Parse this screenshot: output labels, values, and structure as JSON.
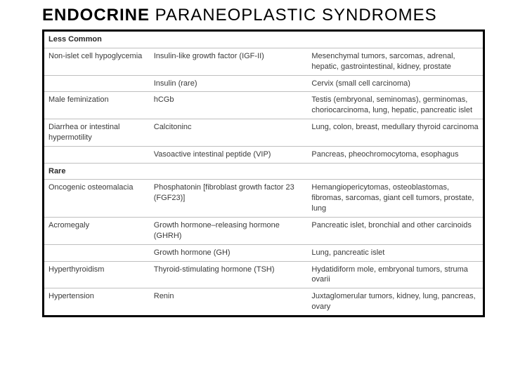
{
  "title_bold": "ENDOCRINE",
  "title_rest": "  PARANEOPLASTIC  SYNDROMES",
  "colors": {
    "background": "#ffffff",
    "border_outer": "#000000",
    "border_inner": "#bfbfbf",
    "text": "#3a3a3a",
    "header_text": "#2a2a2a"
  },
  "typography": {
    "title_fontsize": 24,
    "cell_fontsize": 11,
    "font_family": "sans-serif"
  },
  "sections": [
    {
      "header": "Less Common",
      "rows": [
        {
          "col1": "Non-islet cell hypoglycemia",
          "col2": "Insulin-like growth factor (IGF-II)",
          "col3": "Mesenchymal tumors, sarcomas, adrenal, hepatic, gastrointestinal, kidney, prostate"
        },
        {
          "col1": "",
          "col2": "Insulin (rare)",
          "col3": "Cervix (small cell carcinoma)"
        },
        {
          "col1": "Male feminization",
          "col2": "hCGb",
          "col3": "Testis (embryonal, seminomas), germinomas, choriocarcinoma, lung, hepatic, pancreatic islet"
        },
        {
          "col1": "Diarrhea or intestinal hypermotility",
          "col2": "Calcitoninc",
          "col3": "Lung, colon, breast, medullary thyroid carcinoma"
        },
        {
          "col1": "",
          "col2": "Vasoactive intestinal peptide (VIP)",
          "col3": "Pancreas, pheochromocytoma, esophagus"
        }
      ]
    },
    {
      "header": "Rare",
      "rows": [
        {
          "col1": "Oncogenic osteomalacia",
          "col2": "Phosphatonin [fibroblast growth factor 23 (FGF23)]",
          "col3": "Hemangiopericytomas, osteoblastomas, fibromas, sarcomas, giant cell tumors, prostate, lung"
        },
        {
          "col1": "Acromegaly",
          "col2": "Growth hormone–releasing hormone (GHRH)",
          "col3": "Pancreatic islet, bronchial and other carcinoids"
        },
        {
          "col1": "",
          "col2": "Growth hormone (GH)",
          "col3": "Lung, pancreatic islet"
        },
        {
          "col1": "Hyperthyroidism",
          "col2": "Thyroid-stimulating hormone (TSH)",
          "col3": "Hydatidiform mole, embryonal tumors, struma ovarii"
        },
        {
          "col1": "Hypertension",
          "col2": "Renin",
          "col3": "Juxtaglomerular tumors, kidney, lung, pancreas, ovary"
        }
      ]
    }
  ]
}
